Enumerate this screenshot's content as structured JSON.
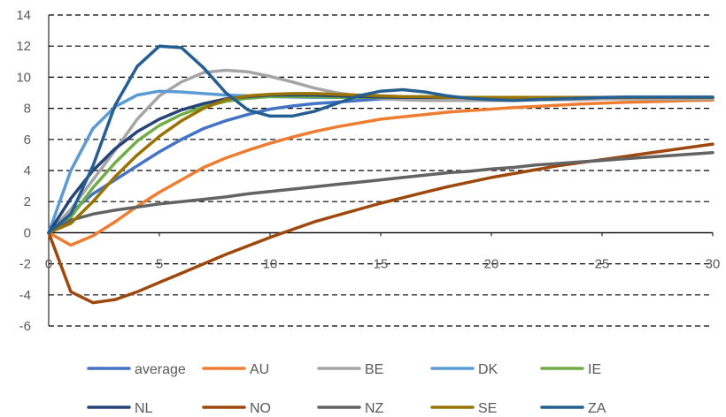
{
  "chart_data": {
    "type": "line",
    "title": "",
    "xlabel": "",
    "ylabel": "",
    "xlim": [
      0,
      30
    ],
    "ylim": [
      -6,
      14
    ],
    "x_ticks": [
      0,
      5,
      10,
      15,
      20,
      25,
      30
    ],
    "y_ticks": [
      -6,
      -4,
      -2,
      0,
      2,
      4,
      6,
      8,
      10,
      12,
      14
    ],
    "grid": "horizontal dashed",
    "legend_position": "bottom",
    "x": [
      0,
      1,
      2,
      3,
      4,
      5,
      6,
      7,
      8,
      9,
      10,
      11,
      12,
      13,
      14,
      15,
      16,
      17,
      18,
      19,
      20,
      21,
      22,
      23,
      24,
      25,
      26,
      27,
      28,
      29,
      30
    ],
    "series": [
      {
        "name": "average",
        "color": "#4472C4",
        "values": [
          0,
          1.3,
          2.5,
          3.4,
          4.3,
          5.2,
          6.0,
          6.7,
          7.2,
          7.6,
          7.95,
          8.15,
          8.3,
          8.4,
          8.5,
          8.6,
          8.6,
          8.6,
          8.6,
          8.6,
          8.6,
          8.6,
          8.6,
          8.65,
          8.65,
          8.65,
          8.7,
          8.7,
          8.7,
          8.7,
          8.7
        ]
      },
      {
        "name": "AU",
        "color": "#ED7D31",
        "values": [
          0,
          -0.8,
          -0.2,
          0.7,
          1.7,
          2.6,
          3.4,
          4.2,
          4.8,
          5.3,
          5.75,
          6.15,
          6.5,
          6.8,
          7.05,
          7.3,
          7.45,
          7.6,
          7.75,
          7.85,
          7.95,
          8.05,
          8.12,
          8.2,
          8.27,
          8.33,
          8.38,
          8.42,
          8.46,
          8.5,
          8.52
        ]
      },
      {
        "name": "BE",
        "color": "#A5A5A5",
        "values": [
          0,
          1.5,
          3.4,
          5.3,
          7.3,
          8.8,
          9.7,
          10.3,
          10.45,
          10.35,
          10.05,
          9.7,
          9.3,
          9.0,
          8.8,
          8.65,
          8.55,
          8.5,
          8.5,
          8.5,
          8.5,
          8.5,
          8.55,
          8.55,
          8.55,
          8.6,
          8.6,
          8.6,
          8.6,
          8.6,
          8.6
        ]
      },
      {
        "name": "DK",
        "color": "#5B9BD5",
        "values": [
          0,
          4.0,
          6.7,
          8.1,
          8.85,
          9.1,
          9.05,
          8.95,
          8.85,
          8.8,
          8.75,
          8.72,
          8.7,
          8.7,
          8.7,
          8.7,
          8.7,
          8.7,
          8.7,
          8.7,
          8.7,
          8.7,
          8.7,
          8.7,
          8.7,
          8.7,
          8.7,
          8.7,
          8.7,
          8.7,
          8.7
        ]
      },
      {
        "name": "IE",
        "color": "#70AD47",
        "values": [
          0,
          1.0,
          2.9,
          4.5,
          5.9,
          6.9,
          7.6,
          8.1,
          8.45,
          8.65,
          8.75,
          8.75,
          8.75,
          8.7,
          8.7,
          8.7,
          8.7,
          8.7,
          8.7,
          8.7,
          8.7,
          8.7,
          8.7,
          8.7,
          8.7,
          8.7,
          8.7,
          8.7,
          8.7,
          8.7,
          8.7
        ]
      },
      {
        "name": "NL",
        "color": "#264478",
        "values": [
          0,
          2.2,
          4.0,
          5.4,
          6.5,
          7.3,
          7.9,
          8.3,
          8.6,
          8.75,
          8.85,
          8.85,
          8.85,
          8.8,
          8.75,
          8.72,
          8.7,
          8.7,
          8.7,
          8.7,
          8.7,
          8.7,
          8.7,
          8.7,
          8.7,
          8.7,
          8.7,
          8.7,
          8.7,
          8.7,
          8.7
        ]
      },
      {
        "name": "NO",
        "color": "#9E480E",
        "values": [
          0,
          -3.8,
          -4.5,
          -4.3,
          -3.8,
          -3.2,
          -2.6,
          -2.0,
          -1.4,
          -0.85,
          -0.3,
          0.2,
          0.7,
          1.1,
          1.5,
          1.9,
          2.25,
          2.6,
          2.95,
          3.25,
          3.55,
          3.8,
          4.05,
          4.3,
          4.5,
          4.7,
          4.9,
          5.1,
          5.3,
          5.5,
          5.7
        ]
      },
      {
        "name": "NZ",
        "color": "#636363",
        "values": [
          0,
          0.8,
          1.2,
          1.45,
          1.65,
          1.85,
          2.0,
          2.15,
          2.3,
          2.5,
          2.65,
          2.8,
          2.95,
          3.1,
          3.25,
          3.4,
          3.55,
          3.7,
          3.85,
          3.95,
          4.1,
          4.2,
          4.35,
          4.45,
          4.55,
          4.65,
          4.75,
          4.85,
          4.95,
          5.05,
          5.15
        ]
      },
      {
        "name": "SE",
        "color": "#997300",
        "values": [
          0,
          0.6,
          2.0,
          3.6,
          5.0,
          6.2,
          7.2,
          8.0,
          8.55,
          8.8,
          8.9,
          8.95,
          8.95,
          8.9,
          8.85,
          8.8,
          8.75,
          8.75,
          8.7,
          8.7,
          8.7,
          8.7,
          8.7,
          8.7,
          8.7,
          8.7,
          8.7,
          8.7,
          8.7,
          8.7,
          8.7
        ]
      },
      {
        "name": "ZA",
        "color": "#255E91",
        "values": [
          0,
          1.2,
          4.3,
          8.2,
          10.7,
          12.0,
          11.9,
          10.6,
          9.0,
          7.9,
          7.5,
          7.5,
          7.8,
          8.3,
          8.8,
          9.1,
          9.2,
          9.05,
          8.8,
          8.65,
          8.55,
          8.5,
          8.55,
          8.6,
          8.65,
          8.7,
          8.72,
          8.72,
          8.72,
          8.72,
          8.72
        ]
      }
    ]
  }
}
